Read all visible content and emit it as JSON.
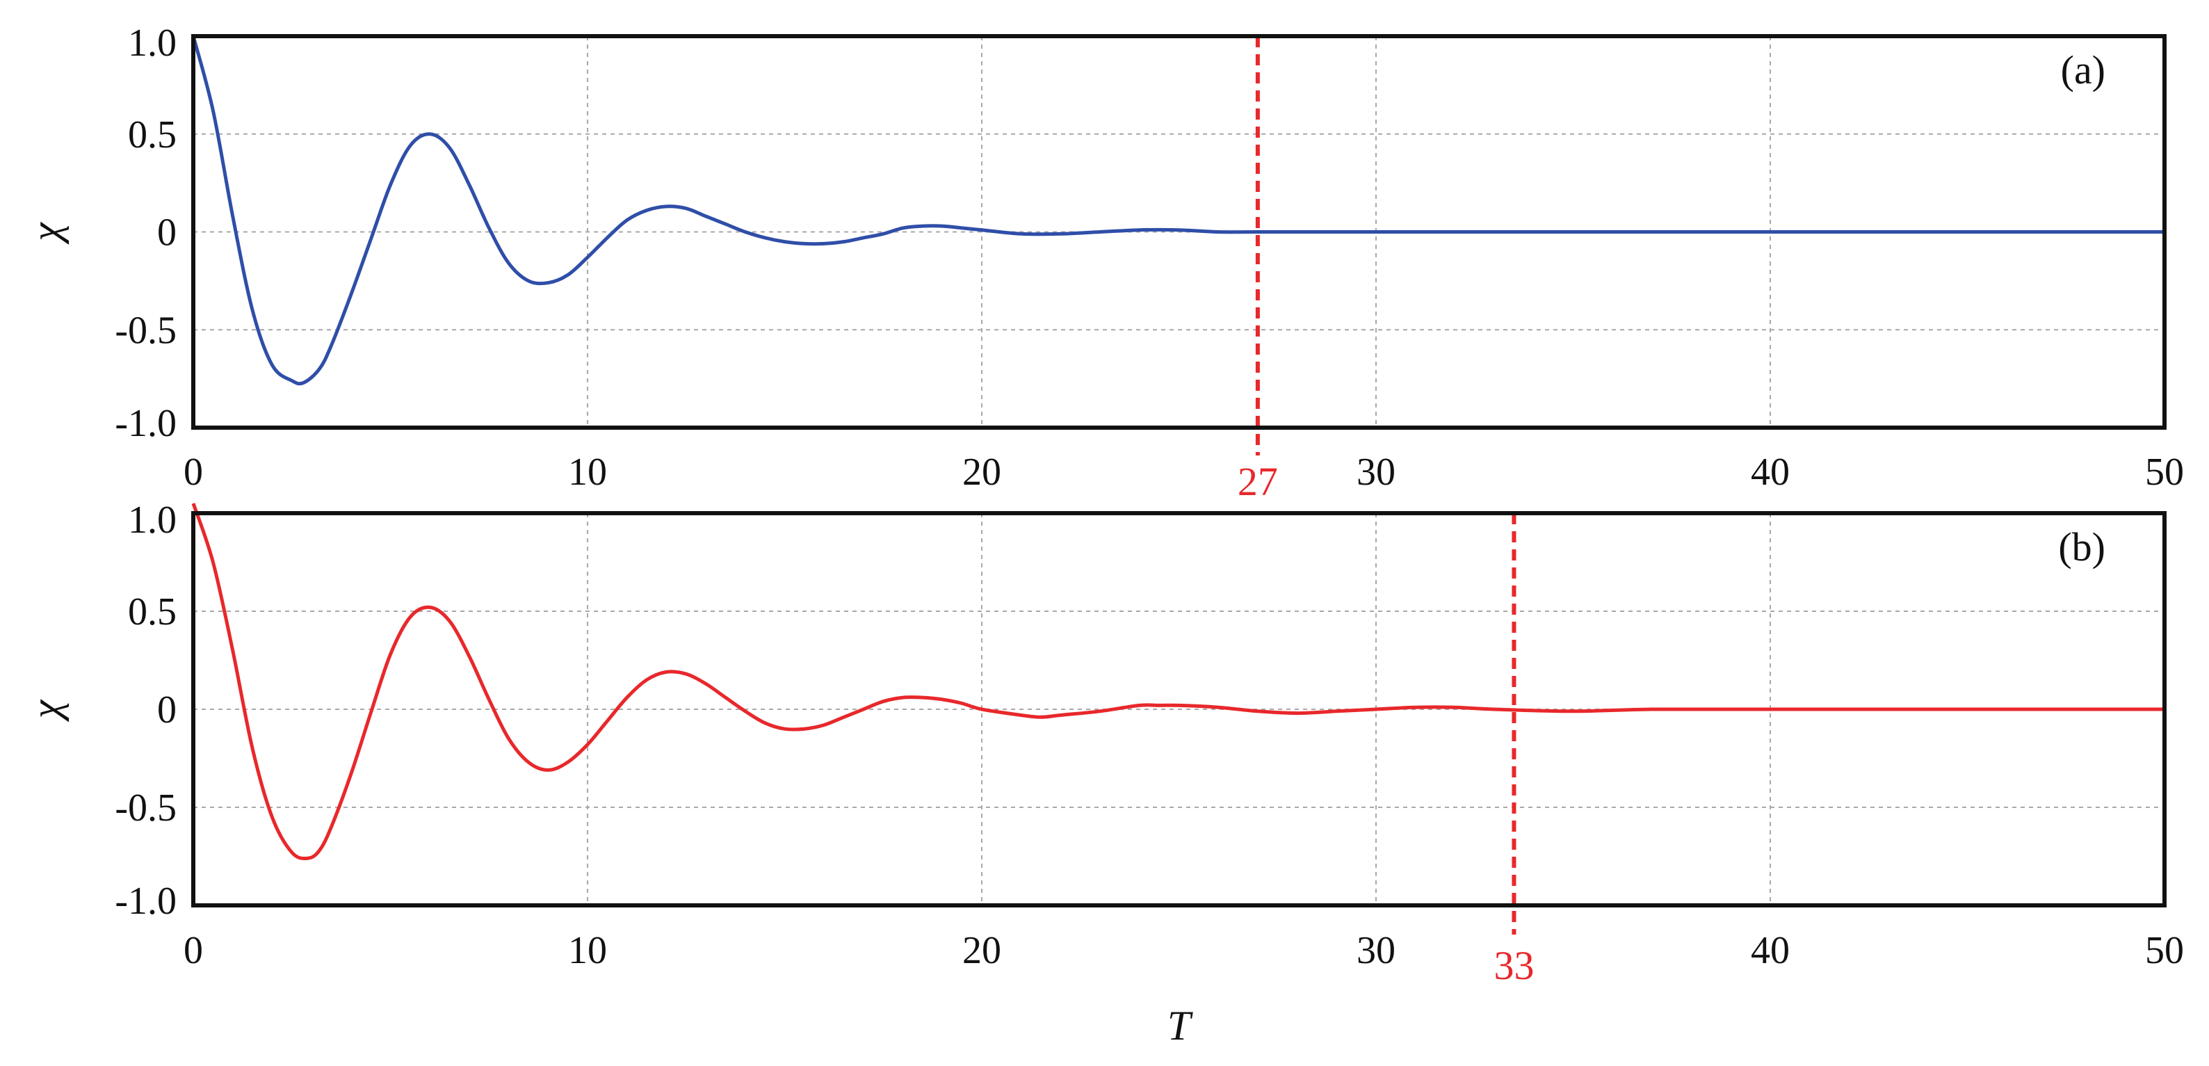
{
  "chart_data": [
    {
      "type": "line",
      "panel_label": "(a)",
      "ylabel": "χ",
      "xlabel": "",
      "xlim": [
        0,
        50
      ],
      "ylim": [
        -1.0,
        1.0
      ],
      "x_ticks": [
        "0",
        "10",
        "20",
        "30",
        "40",
        "50"
      ],
      "y_ticks": [
        "1.0",
        "0.5",
        "0",
        "-0.5",
        "-1.0"
      ],
      "grid": true,
      "color": "#2f4ea8",
      "series": [
        {
          "x": [
            0,
            0.5,
            1,
            1.5,
            2,
            2.5,
            2.8,
            3.2,
            3.5,
            4,
            4.5,
            5,
            5.5,
            6,
            6.5,
            7,
            7.5,
            8,
            8.5,
            9,
            9.5,
            10,
            10.5,
            11,
            11.5,
            12,
            12.5,
            13,
            13.5,
            14,
            14.5,
            15,
            15.5,
            16,
            16.5,
            17,
            17.5,
            18,
            18.5,
            19,
            19.5,
            20,
            21,
            22,
            23,
            24,
            25,
            26,
            27,
            28,
            30,
            35,
            40,
            45,
            50
          ],
          "y": [
            1.0,
            0.62,
            0.08,
            -0.4,
            -0.68,
            -0.76,
            -0.77,
            -0.7,
            -0.58,
            -0.32,
            -0.04,
            0.24,
            0.44,
            0.5,
            0.43,
            0.24,
            0.02,
            -0.16,
            -0.25,
            -0.26,
            -0.22,
            -0.13,
            -0.03,
            0.06,
            0.11,
            0.13,
            0.12,
            0.08,
            0.04,
            0.0,
            -0.03,
            -0.05,
            -0.06,
            -0.06,
            -0.05,
            -0.03,
            -0.01,
            0.02,
            0.03,
            0.03,
            0.02,
            0.01,
            -0.01,
            -0.01,
            0.0,
            0.01,
            0.01,
            0.0,
            0.0,
            0.0,
            0.0,
            0.0,
            0.0,
            0.0,
            0.0
          ]
        }
      ],
      "marker": {
        "x": 27,
        "label": "27",
        "color": "#e8282b"
      }
    },
    {
      "type": "line",
      "panel_label": "(b)",
      "ylabel": "χ",
      "xlabel": "T",
      "xlim": [
        0,
        50
      ],
      "ylim": [
        -1.0,
        1.0
      ],
      "x_ticks": [
        "0",
        "10",
        "20",
        "30",
        "40",
        "50"
      ],
      "y_ticks": [
        "1.0",
        "0.5",
        "0",
        "-0.5",
        "-1.0"
      ],
      "grid": true,
      "color": "#e8282b",
      "series": [
        {
          "x": [
            0,
            0.5,
            1,
            1.5,
            2,
            2.5,
            2.9,
            3.2,
            3.5,
            4,
            4.5,
            5,
            5.5,
            6,
            6.5,
            7,
            7.5,
            8,
            8.5,
            9,
            9.5,
            10,
            10.5,
            11,
            11.5,
            12,
            12.5,
            13,
            13.5,
            14,
            14.5,
            15,
            15.5,
            16,
            16.5,
            17,
            17.5,
            18,
            18.5,
            19,
            19.5,
            20,
            21,
            21.5,
            22,
            23,
            24,
            24.5,
            25,
            26,
            27,
            28,
            29,
            30,
            31,
            32,
            33,
            35,
            37,
            40,
            45,
            50
          ],
          "y": [
            1.05,
            0.75,
            0.3,
            -0.2,
            -0.55,
            -0.73,
            -0.76,
            -0.72,
            -0.6,
            -0.33,
            -0.02,
            0.28,
            0.47,
            0.52,
            0.45,
            0.27,
            0.05,
            -0.15,
            -0.27,
            -0.31,
            -0.27,
            -0.18,
            -0.06,
            0.06,
            0.15,
            0.19,
            0.18,
            0.13,
            0.06,
            -0.01,
            -0.07,
            -0.1,
            -0.1,
            -0.08,
            -0.04,
            0.0,
            0.04,
            0.06,
            0.06,
            0.05,
            0.03,
            0.0,
            -0.03,
            -0.04,
            -0.03,
            -0.01,
            0.02,
            0.02,
            0.02,
            0.01,
            -0.01,
            -0.02,
            -0.01,
            0.0,
            0.01,
            0.01,
            0.0,
            -0.01,
            0.0,
            0.0,
            0.0,
            0.0
          ]
        }
      ],
      "marker": {
        "x": 33.5,
        "label": "33",
        "color": "#e8282b"
      }
    }
  ]
}
